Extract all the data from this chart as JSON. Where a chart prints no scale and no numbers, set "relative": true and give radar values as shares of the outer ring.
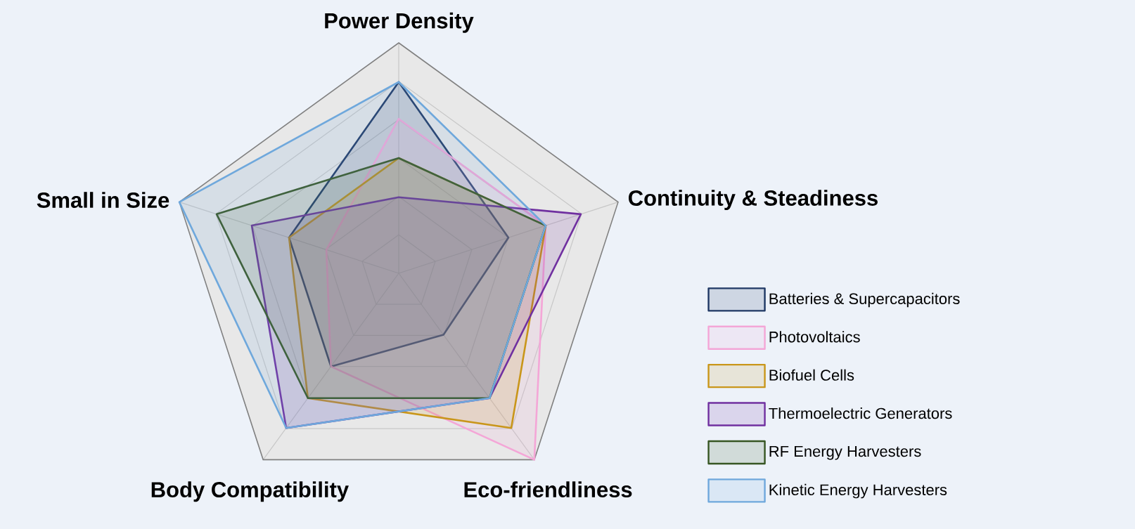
{
  "chart_data": {
    "type": "radar",
    "relative": true,
    "grid": true,
    "legend": "right",
    "categories": [
      "Power Density",
      "Continuity & Steadiness",
      "Eco-friendliness",
      "Body Compatibility",
      "Small in Size"
    ],
    "series": [
      {
        "name": "Batteries & Supercapacitors",
        "color": "#1f3864",
        "values": [
          0.83,
          0.5,
          0.33,
          0.5,
          0.5
        ]
      },
      {
        "name": "Photovoltaics",
        "color": "#f4a6d7",
        "values": [
          0.67,
          0.67,
          1,
          0.5,
          0.33
        ]
      },
      {
        "name": "Biofuel Cells",
        "color": "#c9961a",
        "values": [
          0.5,
          0.67,
          0.83,
          0.67,
          0.5
        ]
      },
      {
        "name": "Thermoelectric Generators",
        "color": "#7030a0",
        "values": [
          0.33,
          0.83,
          0.67,
          0.83,
          0.67
        ]
      },
      {
        "name": "RF Energy Harvesters",
        "color": "#375623",
        "values": [
          0.5,
          0.67,
          0.67,
          0.67,
          0.83
        ]
      },
      {
        "name": "Kinetic Energy Harvesters",
        "color": "#6fa8dc",
        "values": [
          0.83,
          0.67,
          0.67,
          0.83,
          1
        ]
      }
    ]
  }
}
